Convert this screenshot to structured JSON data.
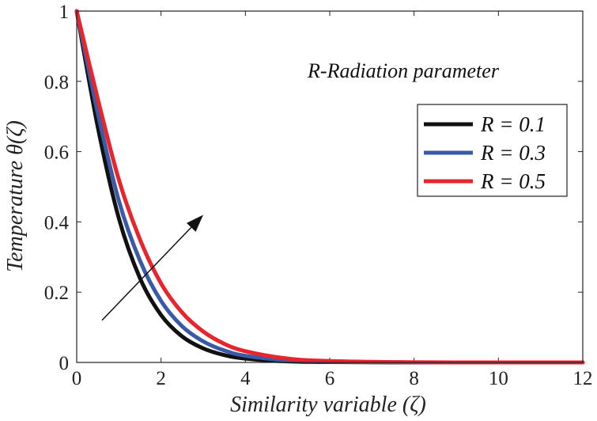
{
  "chart_data": {
    "type": "line",
    "xlabel": "Similarity variable (ζ)",
    "ylabel": "Temperature θ(ζ)",
    "xlim": [
      0,
      12
    ],
    "ylim": [
      0,
      1
    ],
    "xticks": [
      0,
      2,
      4,
      6,
      8,
      10,
      12
    ],
    "yticks": [
      0,
      0.2,
      0.4,
      0.6,
      0.8,
      1
    ],
    "xtick_labels": [
      "0",
      "2",
      "4",
      "6",
      "8",
      "10",
      "12"
    ],
    "ytick_labels": [
      "0",
      "0.2",
      "0.4",
      "0.6",
      "0.8",
      "1"
    ],
    "annotation": "R-Radiation parameter",
    "legend_position": "top-right",
    "arrow": {
      "from": [
        0.6,
        0.12
      ],
      "to": [
        3.0,
        0.42
      ],
      "meaning": "increasing R"
    },
    "series": [
      {
        "name": "R = 0.1",
        "color": "#111111",
        "x": [
          0,
          0.5,
          1,
          1.5,
          2,
          2.5,
          3,
          3.5,
          4,
          5,
          6,
          8,
          10,
          12
        ],
        "y": [
          1,
          0.67,
          0.41,
          0.24,
          0.135,
          0.074,
          0.04,
          0.021,
          0.011,
          0.003,
          0.001,
          0,
          0,
          0
        ]
      },
      {
        "name": "R = 0.3",
        "color": "#3a5aa8",
        "x": [
          0,
          0.5,
          1,
          1.5,
          2,
          2.5,
          3,
          3.5,
          4,
          5,
          6,
          8,
          10,
          12
        ],
        "y": [
          1,
          0.71,
          0.46,
          0.29,
          0.175,
          0.103,
          0.06,
          0.034,
          0.019,
          0.006,
          0.002,
          0,
          0,
          0
        ]
      },
      {
        "name": "R = 0.5",
        "color": "#e8242c",
        "x": [
          0,
          0.5,
          1,
          1.5,
          2,
          2.5,
          3,
          3.5,
          4,
          5,
          6,
          8,
          10,
          12
        ],
        "y": [
          1,
          0.75,
          0.52,
          0.35,
          0.225,
          0.142,
          0.088,
          0.053,
          0.032,
          0.011,
          0.004,
          0.0005,
          0,
          0
        ]
      }
    ]
  }
}
